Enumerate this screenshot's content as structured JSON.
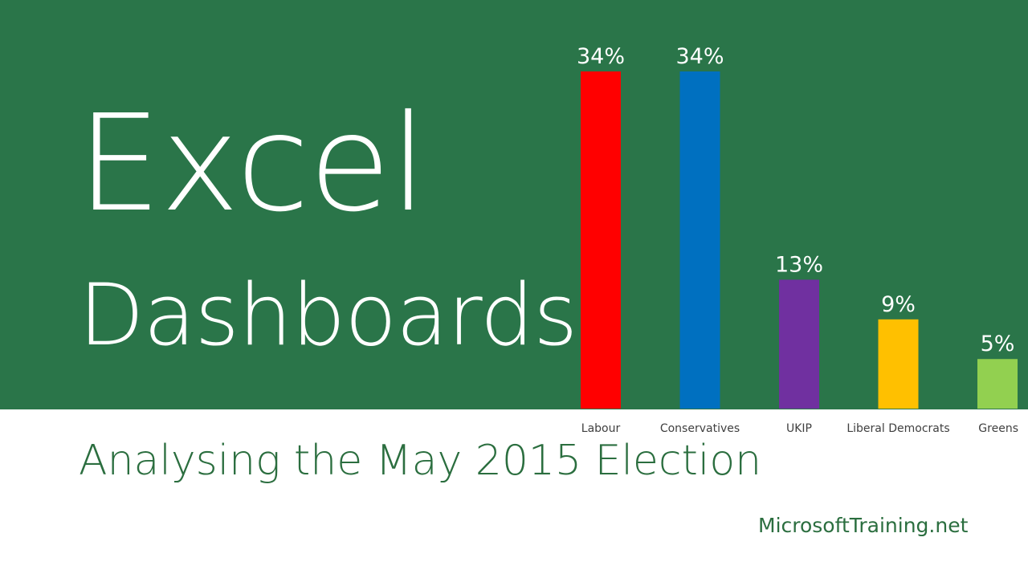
{
  "title_line1": "Excel",
  "title_line2": "Dashboards",
  "subtitle": "Analysing the May 2015 Election",
  "website": "MicrosoftTraining.net",
  "colors": {
    "banner": "#2a7549",
    "subtitle_text": "#2b6e3f"
  },
  "chart_data": {
    "type": "bar",
    "title": "",
    "xlabel": "",
    "ylabel": "",
    "grid": false,
    "legend": "none",
    "ylim": [
      0,
      34
    ],
    "categories": [
      "Labour",
      "Conservatives",
      "UKIP",
      "Liberal Democrats",
      "Greens"
    ],
    "values": [
      34,
      34,
      13,
      9,
      5
    ],
    "data_labels": [
      "34%",
      "34%",
      "13%",
      "9%",
      "5%"
    ],
    "colors": [
      "#ff0000",
      "#0070c0",
      "#7030a0",
      "#ffc000",
      "#92d050"
    ]
  }
}
